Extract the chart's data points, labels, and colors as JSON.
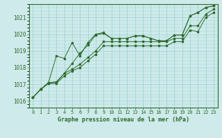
{
  "title": "Graphe pression niveau de la mer (hPa)",
  "background_color": "#ceeaea",
  "grid_color": "#9dcfcf",
  "line_color": "#2d6b2d",
  "xlim": [
    -0.5,
    23.5
  ],
  "ylim": [
    1015.6,
    1021.8
  ],
  "yticks": [
    1016,
    1017,
    1018,
    1019,
    1020,
    1021
  ],
  "xticks": [
    0,
    1,
    2,
    3,
    4,
    5,
    6,
    7,
    8,
    9,
    10,
    11,
    12,
    13,
    14,
    15,
    16,
    17,
    18,
    19,
    20,
    21,
    22,
    23
  ],
  "series": [
    [
      1016.2,
      1016.7,
      1017.1,
      1018.7,
      1018.55,
      1019.5,
      1018.7,
      1019.5,
      1020.0,
      1020.1,
      1019.75,
      1019.75,
      1019.75,
      1019.9,
      1019.9,
      1019.75,
      1019.6,
      1019.6,
      1019.95,
      1019.95,
      1021.1,
      1021.3,
      1021.6,
      1021.7
    ],
    [
      1016.2,
      1016.7,
      1017.1,
      1017.15,
      1017.65,
      1018.25,
      1018.85,
      1019.35,
      1019.95,
      1020.05,
      1019.75,
      1019.75,
      1019.75,
      1019.9,
      1019.9,
      1019.75,
      1019.6,
      1019.6,
      1019.95,
      1019.95,
      1021.1,
      1021.3,
      1021.6,
      1021.7
    ],
    [
      1016.2,
      1016.7,
      1017.05,
      1017.1,
      1017.65,
      1017.9,
      1018.2,
      1018.6,
      1019.0,
      1019.55,
      1019.55,
      1019.55,
      1019.55,
      1019.55,
      1019.55,
      1019.55,
      1019.55,
      1019.55,
      1019.75,
      1019.75,
      1020.5,
      1020.5,
      1021.2,
      1021.5
    ],
    [
      1016.2,
      1016.7,
      1017.05,
      1017.05,
      1017.5,
      1017.8,
      1018.0,
      1018.4,
      1018.8,
      1019.3,
      1019.3,
      1019.3,
      1019.3,
      1019.3,
      1019.3,
      1019.3,
      1019.3,
      1019.3,
      1019.55,
      1019.55,
      1020.25,
      1020.15,
      1021.0,
      1021.3
    ]
  ]
}
